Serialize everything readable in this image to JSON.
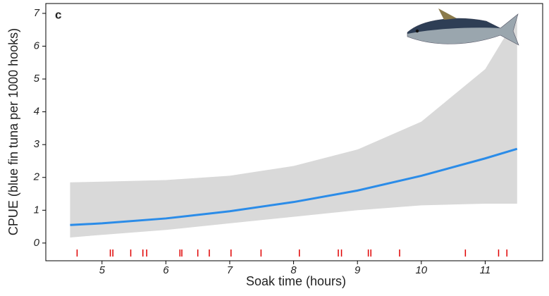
{
  "chart_data": {
    "type": "line",
    "panel_label": "c",
    "xlabel": "Soak time (hours)",
    "ylabel": "CPUE (blue fin tuna per 1000 hooks)",
    "x": [
      4.5,
      5,
      6,
      7,
      8,
      9,
      10,
      11,
      11.5
    ],
    "series": [
      {
        "color": "#2b8ce8",
        "values": [
          0.55,
          0.6,
          0.75,
          0.97,
          1.25,
          1.6,
          2.05,
          2.58,
          2.87
        ]
      }
    ],
    "band": {
      "color": "#d9d9d9",
      "upper": [
        1.85,
        1.87,
        1.92,
        2.05,
        2.35,
        2.85,
        3.7,
        5.3,
        6.9
      ],
      "lower": [
        0.17,
        0.25,
        0.4,
        0.6,
        0.8,
        1.0,
        1.15,
        1.2,
        1.2
      ]
    },
    "rug": {
      "color": "#e00000",
      "x": [
        4.61,
        5.13,
        5.17,
        5.45,
        5.64,
        5.7,
        6.22,
        6.25,
        6.5,
        6.68,
        7.02,
        7.49,
        8.09,
        8.7,
        8.75,
        9.17,
        9.21,
        9.66,
        10.69,
        11.21,
        11.34
      ]
    },
    "xlim": [
      4.12,
      11.9
    ],
    "ylim": [
      -0.54,
      7.3
    ],
    "xticks": [
      5,
      6,
      7,
      8,
      9,
      10,
      11
    ],
    "yticks": [
      0,
      1,
      2,
      3,
      4,
      5,
      6,
      7
    ],
    "grid": false
  }
}
